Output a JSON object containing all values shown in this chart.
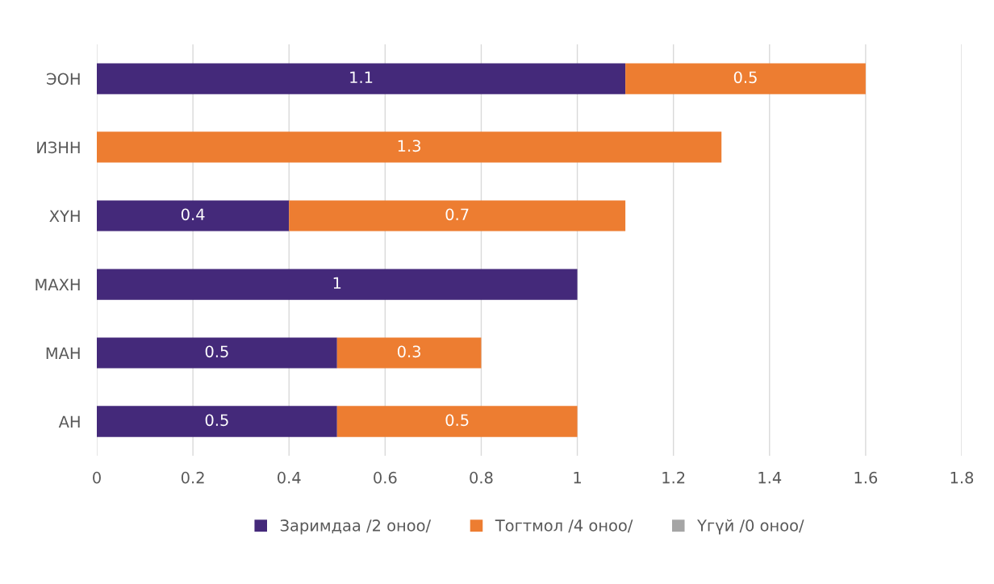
{
  "chart_data": {
    "type": "bar",
    "orientation": "horizontal",
    "stacked": true,
    "categories": [
      "ЭОН",
      "ИЗНН",
      "ХҮН",
      "МАХН",
      "МАН",
      "АН"
    ],
    "series": [
      {
        "name": "Заримдаа /2 оноо/",
        "color": "#44297a",
        "values": [
          1.1,
          null,
          0.4,
          1,
          0.5,
          0.5
        ]
      },
      {
        "name": "Тогтмол /4 оноо/",
        "color": "#ed7d31",
        "values": [
          0.5,
          1.3,
          0.7,
          null,
          0.3,
          0.5
        ]
      },
      {
        "name": "Үгүй /0 оноо/",
        "color": "#a5a5a5",
        "values": [
          null,
          null,
          null,
          null,
          null,
          null
        ]
      }
    ],
    "xlim": [
      0,
      1.8
    ],
    "xticks": [
      0,
      0.2,
      0.4,
      0.6,
      0.8,
      1,
      1.2,
      1.4,
      1.6,
      1.8
    ],
    "grid": "x",
    "legend": "bottom",
    "data_labels": true
  }
}
